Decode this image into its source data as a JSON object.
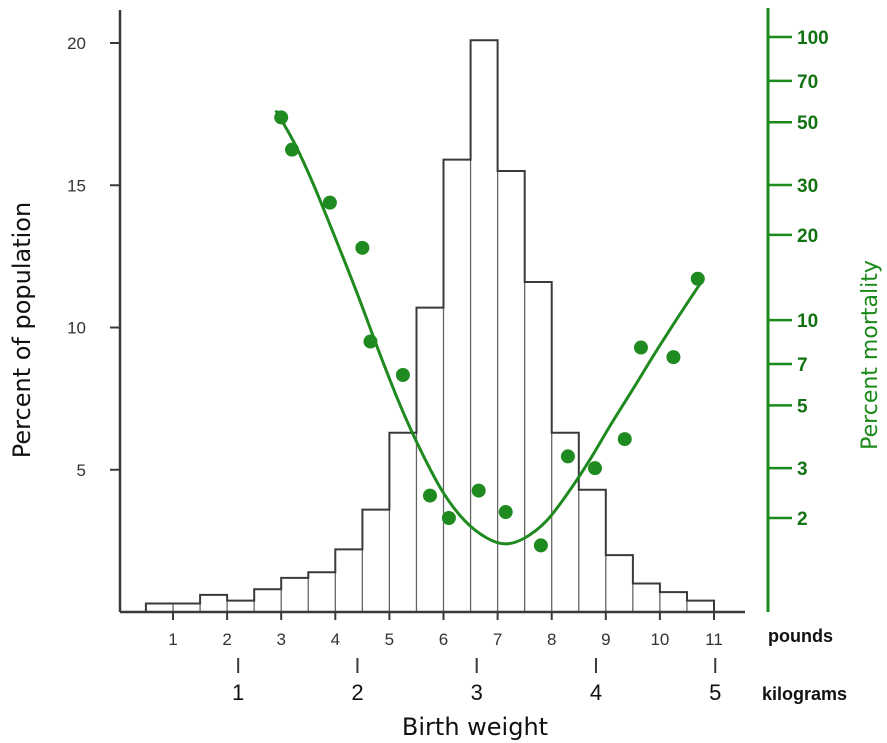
{
  "chart_data": {
    "type": "bar",
    "xlabel": "Birth weight",
    "ylabel": "Percent of population",
    "y2label": "Percent mortality",
    "x_unit_pounds": "pounds",
    "x_unit_kilograms": "kilograms",
    "ylim": [
      0,
      20
    ],
    "y2lim_log": [
      0.9,
      100
    ],
    "y2scale": "log",
    "xlim_pounds": [
      0.5,
      11.2
    ],
    "pounds_ticks": [
      "1",
      "2",
      "3",
      "4",
      "5",
      "6",
      "7",
      "8",
      "9",
      "10",
      "11"
    ],
    "kilogram_ticks": [
      "1",
      "2",
      "3",
      "4",
      "5"
    ],
    "y_ticks": [
      "5",
      "10",
      "15",
      "20"
    ],
    "y2_ticks": [
      "2",
      "3",
      "5",
      "7",
      "10",
      "20",
      "30",
      "50",
      "70",
      "100"
    ],
    "histogram": {
      "bin_edges_pounds": [
        0.5,
        1.0,
        1.5,
        2.0,
        2.5,
        3.0,
        3.5,
        4.0,
        4.5,
        5.0,
        5.5,
        6.0,
        6.5,
        7.0,
        7.5,
        8.0,
        8.5,
        9.0,
        9.5,
        10.0,
        10.5,
        11.0
      ],
      "values": [
        0.3,
        0.3,
        0.6,
        0.4,
        0.8,
        1.2,
        1.4,
        2.2,
        3.6,
        6.3,
        10.7,
        15.9,
        20.1,
        15.5,
        11.6,
        6.3,
        4.3,
        2.0,
        1.0,
        0.7,
        0.4
      ]
    },
    "mortality_points": {
      "x_pounds": [
        3.0,
        3.2,
        3.9,
        4.5,
        4.65,
        5.25,
        5.75,
        6.1,
        6.65,
        7.15,
        7.8,
        8.3,
        8.8,
        9.35,
        9.65,
        10.25,
        10.7
      ],
      "y_percent": [
        52,
        40,
        26,
        18,
        8.4,
        6.4,
        2.4,
        2.0,
        2.5,
        2.1,
        1.6,
        3.3,
        3.0,
        3.8,
        8.0,
        7.4,
        14
      ]
    },
    "mortality_fit": {
      "x_pounds": [
        2.9,
        3.25,
        3.6,
        4.0,
        4.4,
        4.8,
        5.2,
        5.6,
        6.0,
        6.4,
        6.8,
        7.15,
        7.5,
        7.9,
        8.3,
        8.7,
        9.1,
        9.5,
        9.9,
        10.3,
        10.75
      ],
      "y_percent": [
        55,
        42,
        30,
        19.5,
        12.5,
        7.8,
        5.0,
        3.4,
        2.45,
        1.95,
        1.7,
        1.62,
        1.7,
        1.95,
        2.45,
        3.2,
        4.3,
        5.7,
        7.6,
        10.0,
        13.5
      ]
    },
    "legend": "none",
    "grid": false
  }
}
